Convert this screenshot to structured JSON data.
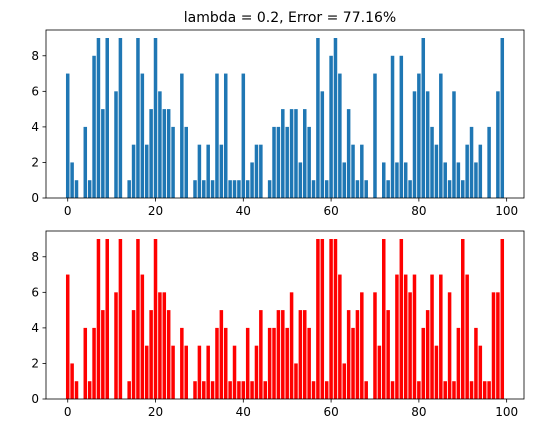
{
  "chart_data": [
    {
      "type": "bar",
      "title": "lambda = 0.2, Error = 77.16%",
      "xlabel": "",
      "ylabel": "",
      "color": "#1f77b4",
      "x": [
        0,
        1,
        2,
        3,
        4,
        5,
        6,
        7,
        8,
        9,
        10,
        11,
        12,
        13,
        14,
        15,
        16,
        17,
        18,
        19,
        20,
        21,
        22,
        23,
        24,
        25,
        26,
        27,
        28,
        29,
        30,
        31,
        32,
        33,
        34,
        35,
        36,
        37,
        38,
        39,
        40,
        41,
        42,
        43,
        44,
        45,
        46,
        47,
        48,
        49,
        50,
        51,
        52,
        53,
        54,
        55,
        56,
        57,
        58,
        59,
        60,
        61,
        62,
        63,
        64,
        65,
        66,
        67,
        68,
        69,
        70,
        71,
        72,
        73,
        74,
        75,
        76,
        77,
        78,
        79,
        80,
        81,
        82,
        83,
        84,
        85,
        86,
        87,
        88,
        89,
        90,
        91,
        92,
        93,
        94,
        95,
        96,
        97,
        98,
        99
      ],
      "values": [
        7,
        2,
        1,
        0,
        4,
        1,
        8,
        9,
        5,
        9,
        0,
        6,
        9,
        0,
        1,
        3,
        9,
        7,
        3,
        5,
        9,
        6,
        5,
        5,
        4,
        0,
        7,
        4,
        0,
        1,
        3,
        1,
        3,
        1,
        7,
        3,
        7,
        1,
        1,
        1,
        7,
        1,
        2,
        3,
        3,
        0,
        1,
        4,
        4,
        5,
        4,
        5,
        5,
        2,
        5,
        4,
        1,
        9,
        6,
        1,
        8,
        9,
        7,
        2,
        5,
        3,
        1,
        3,
        1,
        0,
        7,
        0,
        2,
        1,
        8,
        2,
        8,
        2,
        1,
        6,
        7,
        9,
        6,
        4,
        3,
        7,
        2,
        1,
        6,
        2,
        1,
        3,
        4,
        2,
        3,
        0,
        4,
        0,
        6,
        9
      ],
      "xlim": [
        -4.95,
        103.95
      ],
      "ylim": [
        0,
        9.45
      ],
      "xticks": [
        0,
        20,
        40,
        60,
        80,
        100
      ],
      "yticks": [
        0,
        2,
        4,
        6,
        8
      ],
      "grid": false
    },
    {
      "type": "bar",
      "title": "",
      "xlabel": "",
      "ylabel": "",
      "color": "#ff0000",
      "x": [
        0,
        1,
        2,
        3,
        4,
        5,
        6,
        7,
        8,
        9,
        10,
        11,
        12,
        13,
        14,
        15,
        16,
        17,
        18,
        19,
        20,
        21,
        22,
        23,
        24,
        25,
        26,
        27,
        28,
        29,
        30,
        31,
        32,
        33,
        34,
        35,
        36,
        37,
        38,
        39,
        40,
        41,
        42,
        43,
        44,
        45,
        46,
        47,
        48,
        49,
        50,
        51,
        52,
        53,
        54,
        55,
        56,
        57,
        58,
        59,
        60,
        61,
        62,
        63,
        64,
        65,
        66,
        67,
        68,
        69,
        70,
        71,
        72,
        73,
        74,
        75,
        76,
        77,
        78,
        79,
        80,
        81,
        82,
        83,
        84,
        85,
        86,
        87,
        88,
        89,
        90,
        91,
        92,
        93,
        94,
        95,
        96,
        97,
        98,
        99
      ],
      "values": [
        7,
        2,
        1,
        0,
        4,
        1,
        4,
        9,
        5,
        9,
        0,
        6,
        9,
        0,
        1,
        5,
        9,
        7,
        3,
        5,
        9,
        6,
        6,
        5,
        3,
        0,
        4,
        3,
        0,
        1,
        3,
        1,
        3,
        1,
        4,
        5,
        4,
        1,
        3,
        1,
        1,
        4,
        1,
        3,
        5,
        1,
        4,
        4,
        5,
        5,
        4,
        6,
        2,
        5,
        5,
        4,
        1,
        9,
        9,
        1,
        9,
        9,
        7,
        2,
        5,
        4,
        5,
        6,
        1,
        0,
        6,
        3,
        9,
        5,
        1,
        7,
        9,
        7,
        6,
        7,
        1,
        4,
        5,
        7,
        3,
        7,
        1,
        6,
        1,
        4,
        9,
        7,
        1,
        4,
        3,
        1,
        1,
        6,
        6,
        9
      ],
      "xlim": [
        -4.95,
        103.95
      ],
      "ylim": [
        0,
        9.45
      ],
      "xticks": [
        0,
        20,
        40,
        60,
        80,
        100
      ],
      "yticks": [
        0,
        2,
        4,
        6,
        8
      ],
      "grid": false
    }
  ]
}
